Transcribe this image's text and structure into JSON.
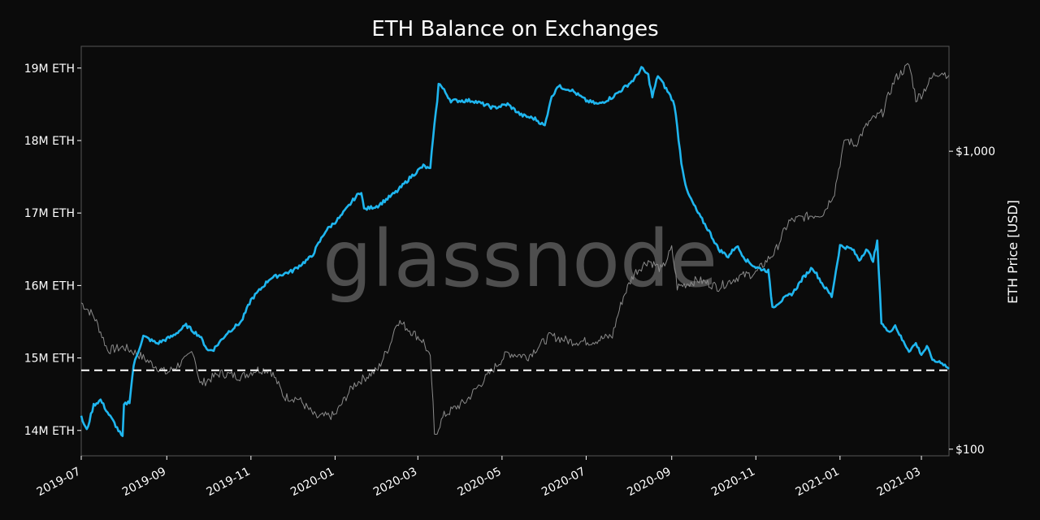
{
  "chart_data": {
    "type": "line",
    "title": "ETH Balance on Exchanges",
    "watermark": "glassnode",
    "ylabel_right": "ETH Price [USD]",
    "x_ticks": [
      "2019-07",
      "2019-09",
      "2019-11",
      "2020-01",
      "2020-03",
      "2020-05",
      "2020-07",
      "2020-09",
      "2020-11",
      "2021-01",
      "2021-03"
    ],
    "y_left_ticks": [
      {
        "label": "19M ETH",
        "value": 19.0
      },
      {
        "label": "18M ETH",
        "value": 18.0
      },
      {
        "label": "17M ETH",
        "value": 17.0
      },
      {
        "label": "16M ETH",
        "value": 16.0
      },
      {
        "label": "15M ETH",
        "value": 15.0
      },
      {
        "label": "14M ETH",
        "value": 14.0
      }
    ],
    "y_right_ticks": [
      {
        "label": "$1,000",
        "value": 1000
      },
      {
        "label": "$100",
        "value": 100
      }
    ],
    "y_left_range": [
      13.65,
      19.3
    ],
    "y_right_range": [
      95,
      2250
    ],
    "y_right_scale": "log",
    "x_range": [
      "2019-07-01",
      "2021-03-21"
    ],
    "reference_line": {
      "value": 14.83,
      "style": "dashed",
      "color": "#ffffff"
    },
    "colors": {
      "balance": "#1fb6ef",
      "price": "#8a8a8a",
      "background": "#0b0b0b",
      "frame": "#555555"
    },
    "series": [
      {
        "axis": "left",
        "points": [
          [
            "2019-07-01",
            14.18
          ],
          [
            "2019-07-05",
            14.0
          ],
          [
            "2019-07-10",
            14.35
          ],
          [
            "2019-07-15",
            14.42
          ],
          [
            "2019-07-20",
            14.25
          ],
          [
            "2019-07-25",
            14.1
          ],
          [
            "2019-07-31",
            13.9
          ],
          [
            "2019-08-01",
            14.35
          ],
          [
            "2019-08-05",
            14.4
          ],
          [
            "2019-08-08",
            14.9
          ],
          [
            "2019-08-15",
            15.3
          ],
          [
            "2019-08-25",
            15.2
          ],
          [
            "2019-09-05",
            15.3
          ],
          [
            "2019-09-15",
            15.45
          ],
          [
            "2019-09-25",
            15.3
          ],
          [
            "2019-10-01",
            15.1
          ],
          [
            "2019-10-05",
            15.12
          ],
          [
            "2019-10-15",
            15.35
          ],
          [
            "2019-10-25",
            15.5
          ],
          [
            "2019-11-01",
            15.8
          ],
          [
            "2019-11-15",
            16.1
          ],
          [
            "2019-12-01",
            16.2
          ],
          [
            "2019-12-15",
            16.4
          ],
          [
            "2019-12-25",
            16.75
          ],
          [
            "2020-01-05",
            16.95
          ],
          [
            "2020-01-15",
            17.2
          ],
          [
            "2020-01-20",
            17.3
          ],
          [
            "2020-01-22",
            17.05
          ],
          [
            "2020-02-01",
            17.1
          ],
          [
            "2020-02-15",
            17.3
          ],
          [
            "2020-02-25",
            17.5
          ],
          [
            "2020-03-05",
            17.65
          ],
          [
            "2020-03-10",
            17.6
          ],
          [
            "2020-03-12",
            18.05
          ],
          [
            "2020-03-15",
            18.55
          ],
          [
            "2020-03-16",
            18.8
          ],
          [
            "2020-03-25",
            18.55
          ],
          [
            "2020-04-10",
            18.55
          ],
          [
            "2020-04-25",
            18.45
          ],
          [
            "2020-05-05",
            18.5
          ],
          [
            "2020-05-15",
            18.35
          ],
          [
            "2020-05-25",
            18.3
          ],
          [
            "2020-06-01",
            18.2
          ],
          [
            "2020-06-05",
            18.55
          ],
          [
            "2020-06-10",
            18.75
          ],
          [
            "2020-06-20",
            18.7
          ],
          [
            "2020-07-01",
            18.55
          ],
          [
            "2020-07-10",
            18.5
          ],
          [
            "2020-07-20",
            18.6
          ],
          [
            "2020-07-30",
            18.75
          ],
          [
            "2020-08-05",
            18.85
          ],
          [
            "2020-08-10",
            19.0
          ],
          [
            "2020-08-15",
            18.9
          ],
          [
            "2020-08-18",
            18.6
          ],
          [
            "2020-08-22",
            18.9
          ],
          [
            "2020-08-30",
            18.65
          ],
          [
            "2020-09-03",
            18.5
          ],
          [
            "2020-09-08",
            17.7
          ],
          [
            "2020-09-12",
            17.3
          ],
          [
            "2020-09-20",
            17.0
          ],
          [
            "2020-09-28",
            16.75
          ],
          [
            "2020-10-05",
            16.5
          ],
          [
            "2020-10-12",
            16.4
          ],
          [
            "2020-10-18",
            16.55
          ],
          [
            "2020-10-25",
            16.35
          ],
          [
            "2020-11-01",
            16.25
          ],
          [
            "2020-11-10",
            16.2
          ],
          [
            "2020-11-13",
            15.7
          ],
          [
            "2020-11-20",
            15.8
          ],
          [
            "2020-11-28",
            15.9
          ],
          [
            "2020-12-05",
            16.1
          ],
          [
            "2020-12-12",
            16.25
          ],
          [
            "2020-12-20",
            16.0
          ],
          [
            "2020-12-26",
            15.85
          ],
          [
            "2021-01-01",
            16.55
          ],
          [
            "2021-01-10",
            16.5
          ],
          [
            "2021-01-15",
            16.35
          ],
          [
            "2021-01-20",
            16.5
          ],
          [
            "2021-01-25",
            16.35
          ],
          [
            "2021-01-28",
            16.6
          ],
          [
            "2021-01-31",
            15.5
          ],
          [
            "2021-02-05",
            15.35
          ],
          [
            "2021-02-10",
            15.45
          ],
          [
            "2021-02-15",
            15.25
          ],
          [
            "2021-02-20",
            15.1
          ],
          [
            "2021-02-25",
            15.2
          ],
          [
            "2021-03-01",
            15.05
          ],
          [
            "2021-03-05",
            15.15
          ],
          [
            "2021-03-10",
            14.95
          ],
          [
            "2021-03-15",
            14.95
          ],
          [
            "2021-03-21",
            14.85
          ]
        ]
      },
      {
        "axis": "right",
        "points": [
          [
            "2019-07-01",
            310
          ],
          [
            "2019-07-10",
            280
          ],
          [
            "2019-07-20",
            215
          ],
          [
            "2019-08-01",
            220
          ],
          [
            "2019-08-10",
            210
          ],
          [
            "2019-08-20",
            195
          ],
          [
            "2019-09-01",
            180
          ],
          [
            "2019-09-15",
            200
          ],
          [
            "2019-09-20",
            215
          ],
          [
            "2019-09-25",
            165
          ],
          [
            "2019-10-10",
            180
          ],
          [
            "2019-10-25",
            175
          ],
          [
            "2019-11-05",
            185
          ],
          [
            "2019-11-15",
            185
          ],
          [
            "2019-11-25",
            150
          ],
          [
            "2019-12-05",
            148
          ],
          [
            "2019-12-18",
            128
          ],
          [
            "2020-01-01",
            130
          ],
          [
            "2020-01-15",
            165
          ],
          [
            "2020-02-01",
            185
          ],
          [
            "2020-02-10",
            225
          ],
          [
            "2020-02-15",
            270
          ],
          [
            "2020-02-20",
            260
          ],
          [
            "2020-03-05",
            230
          ],
          [
            "2020-03-10",
            200
          ],
          [
            "2020-03-13",
            110
          ],
          [
            "2020-03-20",
            130
          ],
          [
            "2020-04-05",
            145
          ],
          [
            "2020-04-20",
            175
          ],
          [
            "2020-05-05",
            210
          ],
          [
            "2020-05-20",
            205
          ],
          [
            "2020-06-05",
            240
          ],
          [
            "2020-06-20",
            230
          ],
          [
            "2020-07-05",
            230
          ],
          [
            "2020-07-20",
            240
          ],
          [
            "2020-07-28",
            325
          ],
          [
            "2020-08-05",
            390
          ],
          [
            "2020-08-15",
            430
          ],
          [
            "2020-08-25",
            400
          ],
          [
            "2020-09-01",
            470
          ],
          [
            "2020-09-05",
            350
          ],
          [
            "2020-09-20",
            370
          ],
          [
            "2020-10-05",
            350
          ],
          [
            "2020-10-20",
            380
          ],
          [
            "2020-11-01",
            390
          ],
          [
            "2020-11-15",
            460
          ],
          [
            "2020-11-25",
            580
          ],
          [
            "2020-12-05",
            600
          ],
          [
            "2020-12-20",
            620
          ],
          [
            "2020-12-28",
            730
          ],
          [
            "2021-01-05",
            1100
          ],
          [
            "2021-01-12",
            1050
          ],
          [
            "2021-01-22",
            1250
          ],
          [
            "2021-02-01",
            1350
          ],
          [
            "2021-02-10",
            1750
          ],
          [
            "2021-02-20",
            1950
          ],
          [
            "2021-02-25",
            1500
          ],
          [
            "2021-03-01",
            1550
          ],
          [
            "2021-03-10",
            1800
          ],
          [
            "2021-03-15",
            1850
          ],
          [
            "2021-03-21",
            1800
          ]
        ]
      }
    ]
  }
}
